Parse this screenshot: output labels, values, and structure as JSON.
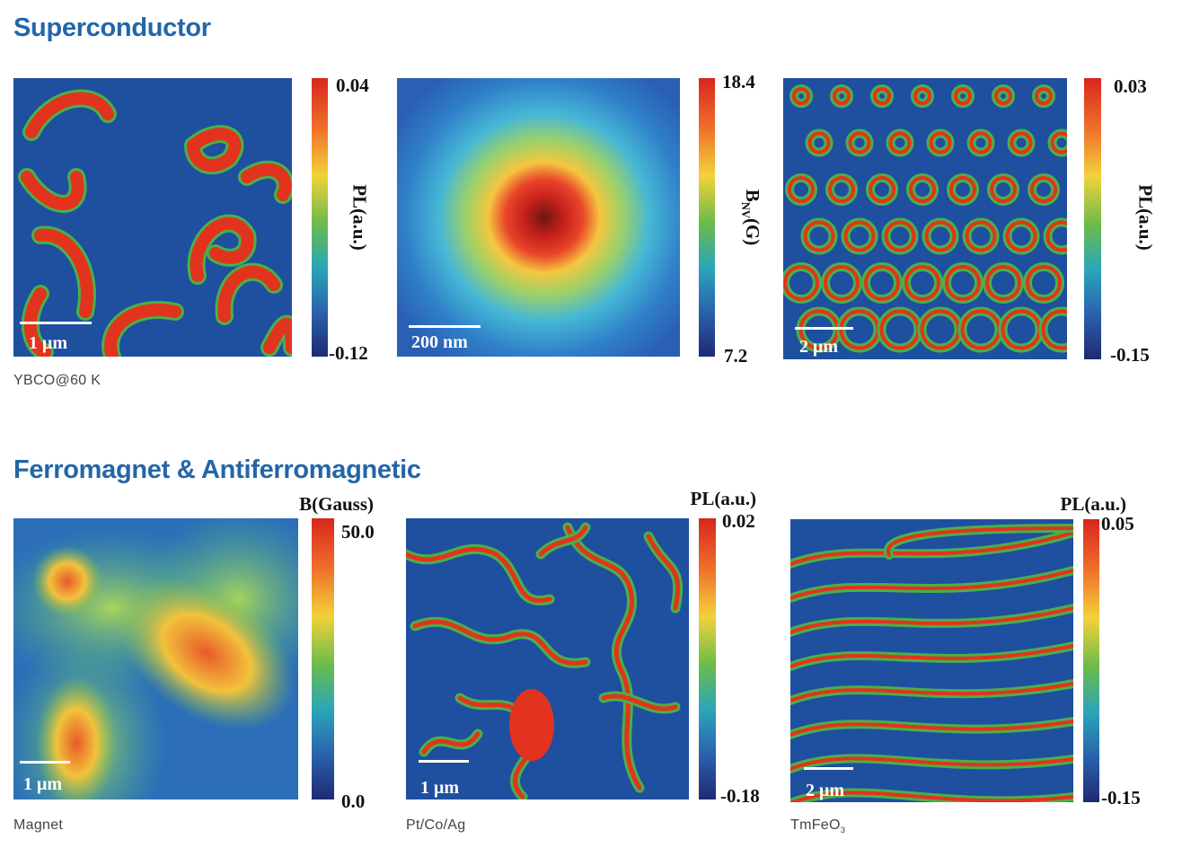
{
  "sections": [
    {
      "title": "Superconductor",
      "panels": [
        {
          "colorbar_max": "0.04",
          "colorbar_min": "-0.12",
          "colorbar_label": "PL(a.u.)",
          "scale_bar": "1 μm",
          "caption": "YBCO@60 K"
        },
        {
          "colorbar_max": "18.4",
          "colorbar_min": "7.2",
          "colorbar_label": {
            "main": "B",
            "sub": "NV",
            "unit": "(G)"
          },
          "scale_bar": "200 nm"
        },
        {
          "colorbar_max": "0.03",
          "colorbar_min": "-0.15",
          "colorbar_label": "PL(a.u.)",
          "scale_bar": "2 μm"
        }
      ]
    },
    {
      "title": "Ferromagnet & Antiferromagnetic",
      "panels": [
        {
          "colorbar_max": "50.0",
          "colorbar_min": "0.0",
          "colorbar_label": "B(Gauss)",
          "scale_bar": "1 μm",
          "caption": "Magnet"
        },
        {
          "colorbar_max": "0.02",
          "colorbar_min": "-0.18",
          "colorbar_label": "PL(a.u.)",
          "scale_bar": "1 μm",
          "caption": "Pt/Co/Ag"
        },
        {
          "colorbar_max": "0.05",
          "colorbar_min": "-0.15",
          "colorbar_label": "PL(a.u.)",
          "scale_bar": "2 μm",
          "caption": {
            "main": "TmFeO",
            "sub": "3"
          }
        }
      ]
    }
  ]
}
